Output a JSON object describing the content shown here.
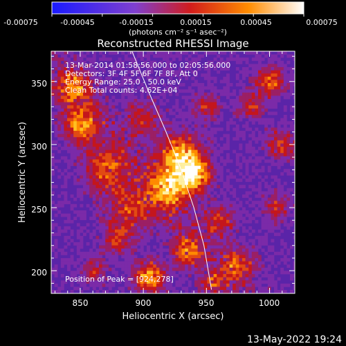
{
  "colorbar": {
    "ticks": [
      "-0.00075",
      "-0.00045",
      "-0.00015",
      "0.00015",
      "0.00045",
      "0.00075"
    ],
    "units_label": "(photons cm⁻² s⁻¹ asec⁻²)",
    "range": [
      -0.00075,
      0.00075
    ],
    "colors": [
      "#1a1aff",
      "#7f3fcf",
      "#d21c1c",
      "#ff8c00",
      "#ffffff"
    ]
  },
  "chart_data": {
    "type": "heatmap",
    "title": "Reconstructed RHESSI Image",
    "xlabel": "Heliocentric X (arcsec)",
    "ylabel": "Heliocentric Y (arcsec)",
    "xlim": [
      827,
      1020
    ],
    "ylim": [
      182,
      374
    ],
    "xticks": [
      "850",
      "900",
      "950",
      "1000"
    ],
    "yticks": [
      "200",
      "250",
      "300",
      "350"
    ],
    "xtick_values": [
      850,
      900,
      950,
      1000
    ],
    "ytick_values": [
      200,
      250,
      300,
      350
    ],
    "annotations": [
      "13-Mar-2014 01:58:56.000 to 02:05:56.000",
      "Detectors: 3F 4F 5F 6F 7F 8F, Att 0",
      "Energy Range: 25.0 - 50.0 keV",
      "Clean      Total counts: 4.62E+04"
    ],
    "peak_label": "Position of Peak = [924,278]",
    "peak_position": [
      924,
      278
    ],
    "limb_curve": [
      [
        891,
        374
      ],
      [
        905,
        340
      ],
      [
        918,
        310
      ],
      [
        930,
        280
      ],
      [
        940,
        250
      ],
      [
        948,
        220
      ],
      [
        954,
        185
      ]
    ]
  },
  "footer": {
    "timestamp": "13-May-2022 19:24"
  }
}
